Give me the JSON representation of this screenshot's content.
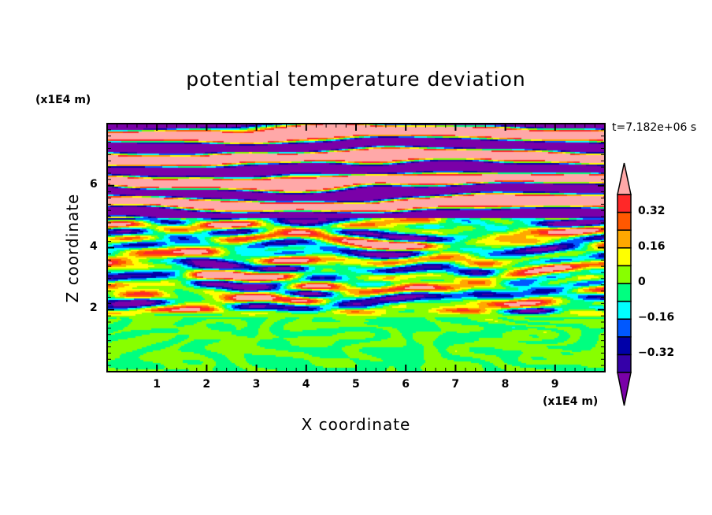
{
  "chart_data": {
    "type": "heatmap",
    "title": "potential temperature deviation",
    "xlabel": "X coordinate",
    "ylabel": "Z coordinate",
    "x_multiplier": "(x1E4 m)",
    "y_multiplier": "(x1E4 m)",
    "annotation": "t=7.182e+06 s",
    "xlim": [
      0,
      10
    ],
    "ylim": [
      0,
      8
    ],
    "x_ticks": [
      "1",
      "2",
      "3",
      "4",
      "5",
      "6",
      "7",
      "8",
      "9"
    ],
    "y_ticks": [
      "2",
      "4",
      "6"
    ],
    "colorbar": {
      "levels": [
        -0.4,
        -0.32,
        -0.24,
        -0.16,
        -0.08,
        0,
        0.08,
        0.16,
        0.24,
        0.32,
        0.4
      ],
      "tick_labels": [
        "0.32",
        "0.16",
        "0",
        "−0.16",
        "−0.32"
      ],
      "colors_low_to_high": [
        "#7a00a8",
        "#3500a8",
        "#0000a8",
        "#0058ff",
        "#00ffff",
        "#00ff80",
        "#88ff00",
        "#ffff00",
        "#ffa800",
        "#ff5800",
        "#ff2828",
        "#ffa8a8"
      ],
      "extend": "both"
    }
  }
}
